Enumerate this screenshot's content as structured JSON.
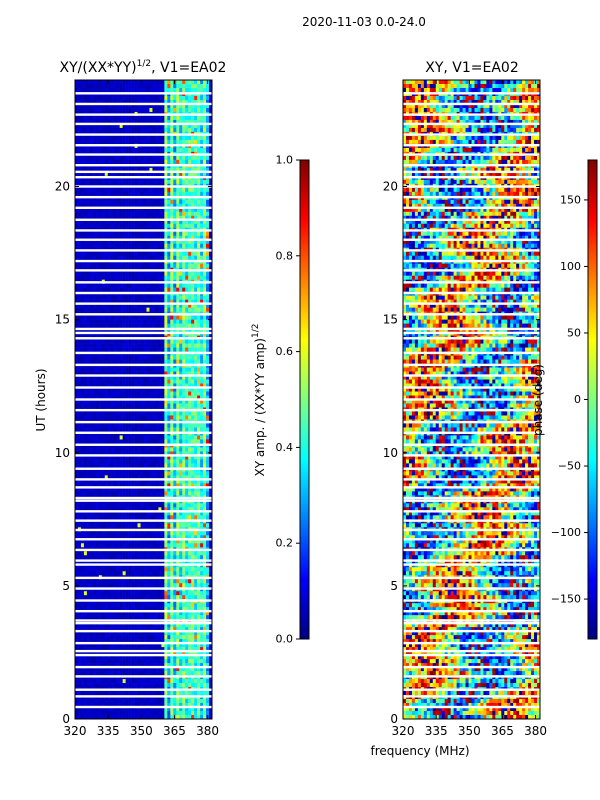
{
  "page_title": "2020-11-03 0.0-24.0",
  "colors": {
    "jet": [
      "#000080",
      "#0000ff",
      "#0080ff",
      "#00ffff",
      "#80ff80",
      "#ffff00",
      "#ff8000",
      "#ff0000",
      "#800000"
    ]
  },
  "chart_data": [
    {
      "type": "heatmap",
      "title": "XY/(XX*YY)^(1/2), V1=EA02",
      "title_parts": {
        "base": "XY/(XX*YY)",
        "sup": "1/2",
        "tail": ", V1=EA02"
      },
      "xlabel": "",
      "ylabel": "UT (hours)",
      "xlim": [
        320,
        382
      ],
      "ylim": [
        0,
        24
      ],
      "xticks": [
        320,
        335,
        350,
        365,
        380
      ],
      "yticks": [
        0,
        5,
        10,
        15,
        20
      ],
      "signal_band_mhz": [
        360,
        380
      ],
      "colorbar": {
        "label": "XY amp. / (XX*YY amp)",
        "label_sup": "1/2",
        "range": [
          0.0,
          1.0
        ],
        "ticks": [
          "0.0",
          "0.2",
          "0.4",
          "0.6",
          "0.8",
          "1.0"
        ]
      }
    },
    {
      "type": "heatmap",
      "title": "XY, V1=EA02",
      "xlabel": "frequency (MHz)",
      "ylabel": "",
      "xlim": [
        320,
        382
      ],
      "ylim": [
        0,
        24
      ],
      "xticks": [
        320,
        335,
        350,
        365,
        380
      ],
      "yticks": [
        0,
        5,
        10,
        15,
        20
      ],
      "colorbar": {
        "label": "phase (deg)",
        "range": [
          -180,
          180
        ],
        "ticks": [
          "−150",
          "−100",
          "−50",
          "0",
          "50",
          "100",
          "150"
        ]
      }
    }
  ],
  "flagged_gaps_ut_hours": [
    0.45,
    0.85,
    1.1,
    1.6,
    1.95,
    2.4,
    2.55,
    2.85,
    3.3,
    3.6,
    3.7,
    4.05,
    4.45,
    4.9,
    5.3,
    5.8,
    5.95,
    6.35,
    6.75,
    7.1,
    7.45,
    7.8,
    8.2,
    8.3,
    8.7,
    9.0,
    9.4,
    9.9,
    10.3,
    10.75,
    11.15,
    11.6,
    12.0,
    12.45,
    12.9,
    13.3,
    13.75,
    14.3,
    14.5,
    14.65,
    15.2,
    15.6,
    16.0,
    16.4,
    16.85,
    17.2,
    17.6,
    18.0,
    18.35,
    18.75,
    19.2,
    19.6,
    20.0,
    20.35,
    20.55,
    20.8,
    21.2,
    21.55,
    21.95,
    22.35,
    22.7,
    23.1,
    23.5
  ]
}
